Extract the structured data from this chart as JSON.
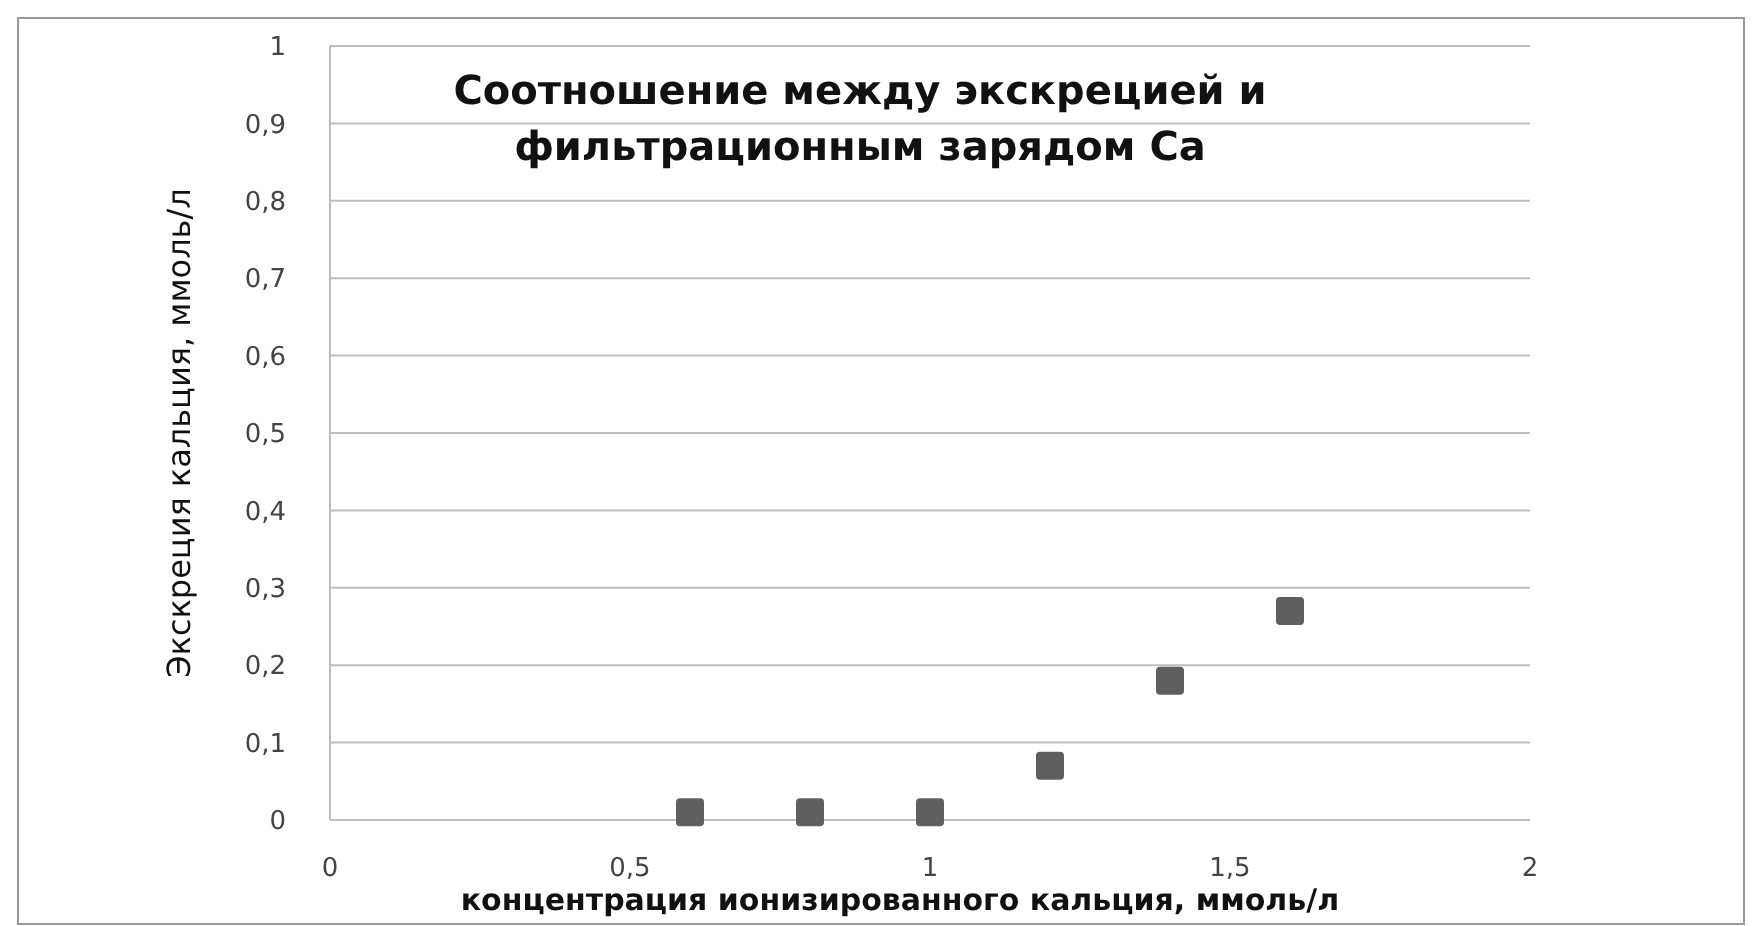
{
  "chart_data": {
    "type": "scatter",
    "title": "Соотношение между экскрецией и\nфильтрационным зарядом Ca",
    "xlabel": "концентрация ионизированного кальция, ммоль/л",
    "ylabel": "Экскреция кальция, ммоль/л",
    "x": [
      0.6,
      0.8,
      1.0,
      1.2,
      1.4,
      1.6
    ],
    "series": [
      {
        "color": "#5f5f5f",
        "values": [
          0.01,
          0.01,
          0.01,
          0.07,
          0.18,
          0.27
        ]
      }
    ],
    "xlim": [
      0,
      2
    ],
    "xticks": [
      0,
      {
        "value": 0.5,
        "label": "0,5"
      },
      1,
      {
        "value": 1.5,
        "label": "1,5"
      },
      2
    ],
    "ylim": [
      0,
      1
    ],
    "yticks": [
      0,
      {
        "value": 0.1,
        "label": "0,1"
      },
      {
        "value": 0.2,
        "label": "0,2"
      },
      {
        "value": 0.3,
        "label": "0,3"
      },
      {
        "value": 0.4,
        "label": "0,4"
      },
      {
        "value": 0.5,
        "label": "0,5"
      },
      {
        "value": 0.6,
        "label": "0,6"
      },
      {
        "value": 0.7,
        "label": "0,7"
      },
      {
        "value": 0.8,
        "label": "0,8"
      },
      {
        "value": 0.9,
        "label": "0,9"
      },
      1
    ],
    "grid": "y",
    "marker": "square"
  }
}
